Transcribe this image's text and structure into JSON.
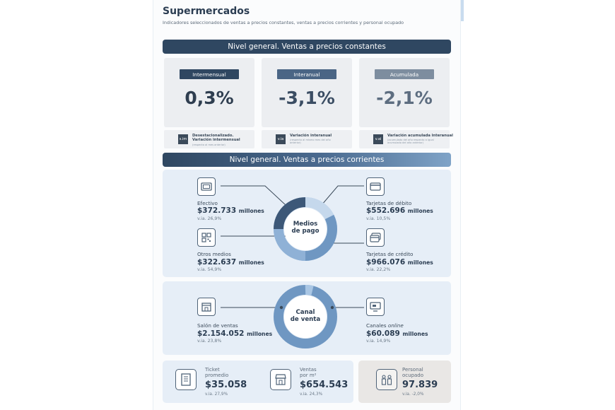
{
  "header": {
    "title": "Supermercados",
    "subtitle": "Indicadores seleccionados de ventas a precios constantes, ventas a precios corrientes y personal ocupado"
  },
  "section1": {
    "title": "Nivel general. Ventas a precios constantes",
    "cards": [
      {
        "badge": "Intermensual",
        "value": "0,3%",
        "badge_color": "#2f4761",
        "value_color": "#2f3e50",
        "note_icon": "s.im",
        "note_line1": "Desestacionalizado.",
        "note_line2": "Variación intermensual",
        "note_small": "(respecto al mes anterior)"
      },
      {
        "badge": "Interanual",
        "value": "-3,1%",
        "badge_color": "#4a6585",
        "value_color": "#3b4d63",
        "note_icon": "v.ia",
        "note_line1": "Variación interanual",
        "note_line2": "",
        "note_small": "(respecto al mismo mes del año anterior)"
      },
      {
        "badge": "Acumulada",
        "value": "-2,1%",
        "badge_color": "#7d8d9f",
        "value_color": "#5d6d80",
        "note_icon": "v.ai",
        "note_line1": "Variación acumulada interanual",
        "note_line2": "",
        "note_small": "(acumulado del año respecto a igual acumulado del año anterior)"
      }
    ]
  },
  "section2": {
    "title": "Nivel general. Ventas a precios corrientes",
    "medios": {
      "center_line1": "Medios",
      "center_line2": "de pago",
      "items": [
        {
          "label": "Efectivo",
          "amount": "$372.733",
          "unit": "millones",
          "via": "v.ia. 26,9%"
        },
        {
          "label": "Otros medios",
          "amount": "$322.637",
          "unit": "millones",
          "via": "v.ia. 54,9%"
        },
        {
          "label": "Tarjetas de débito",
          "amount": "$552.696",
          "unit": "millones",
          "via": "v.ia. 10,5%"
        },
        {
          "label": "Tarjetas de crédito",
          "amount": "$966.076",
          "unit": "millones",
          "via": "v.ia. 22,2%"
        }
      ]
    },
    "canal": {
      "center_line1": "Canal",
      "center_line2": "de venta",
      "items": [
        {
          "label": "Salón de ventas",
          "amount": "$2.154.052",
          "unit": "millones",
          "via": "v.ia. 23,8%"
        },
        {
          "label_prefix": "Canales ",
          "label_italic": "online",
          "amount": "$60.089",
          "unit": "millones",
          "via": "v.ia. 14,9%"
        }
      ]
    }
  },
  "bottom": {
    "ticket": {
      "line1": "Ticket",
      "line2": "promedio",
      "value": "$35.058",
      "via": "v.ia. 27,9%"
    },
    "ventas": {
      "line1": "Ventas",
      "line2": "por m²",
      "value": "$654.543",
      "via": "v.ia. 24,3%"
    },
    "personal": {
      "line1": "Personal",
      "line2": "ocupado",
      "value": "97.839",
      "via": "v.ia. -2,0%"
    }
  },
  "colors": {
    "dark_navy": "#2f4761",
    "panel_blue": "#e6eef7",
    "donut_dark": "#3d5878",
    "donut_mid": "#6f97c2",
    "donut_light": "#a9c6e4"
  }
}
